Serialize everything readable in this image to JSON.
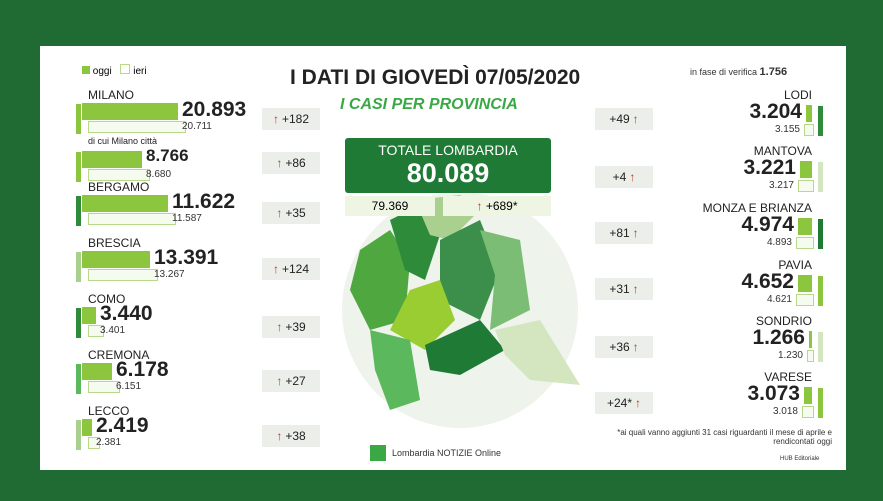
{
  "legend": {
    "today": "oggi",
    "yesterday": "ieri"
  },
  "header": {
    "title": "I DATI DI GIOVEDÌ 07/05/2020",
    "subtitle": "I CASI PER PROVINCIA",
    "verification_label": "in fase di verifica",
    "verification_value": "1.756"
  },
  "total": {
    "label": "TOTALE LOMBARDIA",
    "today": "80.089",
    "yesterday": "79.369",
    "delta": "+689*"
  },
  "left": [
    {
      "name": "MILANO",
      "today": "20.893",
      "yesterday": "20.711",
      "delta": "+182"
    },
    {
      "name": "di cui Milano città",
      "today": "8.766",
      "yesterday": "8.680",
      "delta": "+86"
    },
    {
      "name": "BERGAMO",
      "today": "11.622",
      "yesterday": "11.587",
      "delta": "+35"
    },
    {
      "name": "BRESCIA",
      "today": "13.391",
      "yesterday": "13.267",
      "delta": "+124"
    },
    {
      "name": "COMO",
      "today": "3.440",
      "yesterday": "3.401",
      "delta": "+39"
    },
    {
      "name": "CREMONA",
      "today": "6.178",
      "yesterday": "6.151",
      "delta": "+27"
    },
    {
      "name": "LECCO",
      "today": "2.419",
      "yesterday": "2.381",
      "delta": "+38"
    }
  ],
  "right": [
    {
      "name": "LODI",
      "today": "3.204",
      "yesterday": "3.155",
      "delta": "+49"
    },
    {
      "name": "MANTOVA",
      "today": "3.221",
      "yesterday": "3.217",
      "delta": "+4"
    },
    {
      "name": "MONZA E BRIANZA",
      "today": "4.974",
      "yesterday": "4.893",
      "delta": "+81"
    },
    {
      "name": "PAVIA",
      "today": "4.652",
      "yesterday": "4.621",
      "delta": "+31"
    },
    {
      "name": "SONDRIO",
      "today": "1.266",
      "yesterday": "1.230",
      "delta": "+36"
    },
    {
      "name": "VARESE",
      "today": "3.073",
      "yesterday": "3.018",
      "delta": "+24*"
    }
  ],
  "footer": {
    "note": "*ai quali vanno aggiunti 31 casi riguardanti il mese di aprile e rendicontati oggi",
    "logo": "Lombardia NOTIZIE Online",
    "credit": "HUB Editoriale"
  }
}
